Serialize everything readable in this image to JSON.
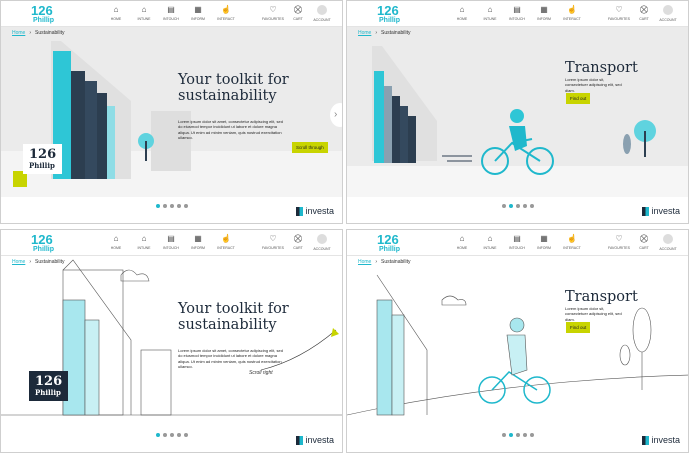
{
  "logo": {
    "number": "126",
    "name": "Phillip"
  },
  "nav": [
    {
      "label": "HOME",
      "icon": "home-icon",
      "glyph": "⌂"
    },
    {
      "label": "INTUNE",
      "icon": "house-icon",
      "glyph": "⌂"
    },
    {
      "label": "INTOUCH",
      "icon": "mail-icon",
      "glyph": "▤"
    },
    {
      "label": "INFORM",
      "icon": "document-icon",
      "glyph": "▦"
    },
    {
      "label": "INTERACT",
      "icon": "pointer-icon",
      "glyph": "☝"
    },
    {
      "label": "FAVOURITES",
      "icon": "heart-icon",
      "glyph": "♡"
    },
    {
      "label": "CART",
      "icon": "cart-icon",
      "glyph": "⛒"
    },
    {
      "label": "ACCOUNT",
      "icon": "avatar-icon",
      "glyph": ""
    }
  ],
  "breadcrumb": {
    "home": "Home",
    "separator": "›",
    "current": "Sustainability"
  },
  "panels": [
    {
      "variant": "grey",
      "title": "Your toolkit for sustainability",
      "body": "Lorem ipsum dolor sit amet, consectetur adipiscing elit, sed do eiusmod tempor incididunt ut labore et dolore magna aliqua. Ut enim ad minim veniam, quis nostrud exercitation ullamco.",
      "button": "Scroll through",
      "active_dot": 0
    },
    {
      "variant": "grey",
      "title": "Transport",
      "body": "Lorem ipsum dolor sit, consectetuer adipiscing elit, sed diam.",
      "button": "Find out",
      "active_dot": 1
    },
    {
      "variant": "line",
      "title": "Your toolkit for sustainability",
      "body": "Lorem ipsum dolor sit amet, consectetur adipiscing elit, sed do eiusmod tempor incididunt ut labore et dolore magna aliqua. Ut enim ad minim veniam, quis nostrud exercitation ullamco.",
      "hint": "Scroll right",
      "active_dot": 0
    },
    {
      "variant": "line",
      "title": "Transport",
      "body": "Lorem ipsum dolor sit, consectetuer adipiscing elit, sed diam.",
      "button": "Find out",
      "active_dot": 1
    }
  ],
  "dots_count": 5,
  "brand": "investa",
  "colors": {
    "accent": "#1fb8cc",
    "button": "#c8d400",
    "navy": "#1d2a3a"
  }
}
